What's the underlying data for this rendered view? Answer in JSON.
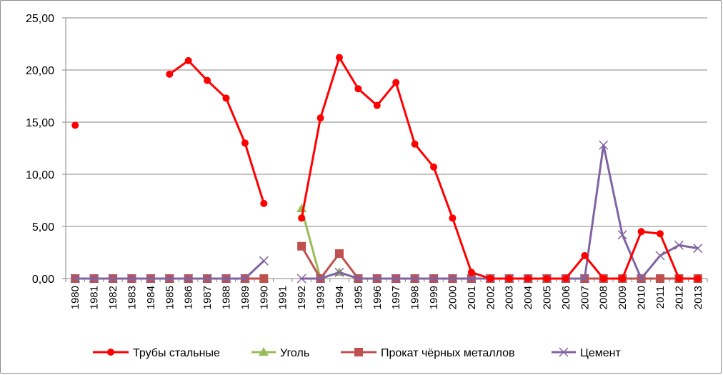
{
  "chart_data": {
    "type": "line",
    "title": "",
    "xlabel": "",
    "ylabel": "",
    "ylim": [
      0,
      25
    ],
    "ytick_step": 5,
    "ytick_labels": [
      "0,00",
      "5,00",
      "10,00",
      "15,00",
      "20,00",
      "25,00"
    ],
    "grid": "horizontal",
    "legend_position": "bottom",
    "categories": [
      "1980",
      "1981",
      "1982",
      "1983",
      "1984",
      "1985",
      "1986",
      "1987",
      "1988",
      "1989",
      "1990",
      "1991",
      "1992",
      "1993",
      "1994",
      "1995",
      "1996",
      "1997",
      "1998",
      "1999",
      "2000",
      "2001",
      "2002",
      "2003",
      "2004",
      "2005",
      "2006",
      "2007",
      "2008",
      "2009",
      "2010",
      "2011",
      "2012",
      "2013"
    ],
    "series": [
      {
        "name": "Трубы стальные",
        "color": "#ff0000",
        "marker": "circle",
        "values": [
          14.7,
          null,
          null,
          null,
          null,
          19.6,
          20.9,
          19.0,
          17.3,
          13.0,
          7.2,
          null,
          5.8,
          15.4,
          21.2,
          18.2,
          16.6,
          18.8,
          12.9,
          10.7,
          5.8,
          0.6,
          0,
          0,
          0,
          0,
          0,
          2.2,
          0,
          0,
          4.5,
          4.3,
          0,
          0
        ]
      },
      {
        "name": "Уголь",
        "color": "#9bbb59",
        "marker": "triangle",
        "values": [
          0,
          0,
          0,
          0,
          0,
          0,
          0,
          0,
          0,
          0,
          0,
          null,
          6.7,
          0,
          0.6,
          0,
          0,
          0,
          0,
          0,
          0,
          0,
          0,
          0,
          0,
          0,
          0,
          0,
          0,
          0,
          0,
          0,
          0,
          0
        ]
      },
      {
        "name": "Прокат чёрных металлов",
        "color": "#c0504d",
        "marker": "square",
        "values": [
          0,
          0,
          0,
          0,
          0,
          0,
          0,
          0,
          0,
          0,
          0,
          null,
          3.1,
          0,
          2.4,
          0,
          0,
          0,
          0,
          0,
          0,
          0,
          0,
          0,
          0,
          0,
          0,
          0,
          0,
          0,
          0,
          0,
          0,
          0
        ]
      },
      {
        "name": "Цемент",
        "color": "#8064a2",
        "marker": "x",
        "values": [
          0,
          0,
          0,
          0,
          0,
          0,
          0,
          0,
          0,
          0,
          1.7,
          null,
          0,
          0,
          0.6,
          0,
          0,
          0,
          0,
          0,
          0,
          0,
          0,
          0,
          0,
          0,
          0,
          0,
          12.8,
          4.2,
          0,
          2.2,
          3.2,
          2.9
        ]
      }
    ]
  }
}
